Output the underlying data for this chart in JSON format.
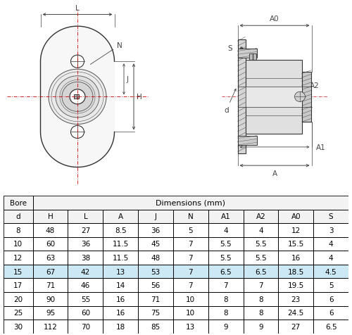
{
  "bore_header": "Bore",
  "dim_header": "Dimensions (mm)",
  "col_headers": [
    "d",
    "H",
    "L",
    "A",
    "J",
    "N",
    "A1",
    "A2",
    "A0",
    "S"
  ],
  "rows": [
    [
      "8",
      "48",
      "27",
      "8.5",
      "36",
      "5",
      "4",
      "4",
      "12",
      "3"
    ],
    [
      "10",
      "60",
      "36",
      "11.5",
      "45",
      "7",
      "5.5",
      "5.5",
      "15.5",
      "4"
    ],
    [
      "12",
      "63",
      "38",
      "11.5",
      "48",
      "7",
      "5.5",
      "5.5",
      "16",
      "4"
    ],
    [
      "15",
      "67",
      "42",
      "13",
      "53",
      "7",
      "6.5",
      "6.5",
      "18.5",
      "4.5"
    ],
    [
      "17",
      "71",
      "46",
      "14",
      "56",
      "7",
      "7",
      "7",
      "19.5",
      "5"
    ],
    [
      "20",
      "90",
      "55",
      "16",
      "71",
      "10",
      "8",
      "8",
      "23",
      "6"
    ],
    [
      "25",
      "95",
      "60",
      "16",
      "75",
      "10",
      "8",
      "8",
      "24.5",
      "6"
    ],
    [
      "30",
      "112",
      "70",
      "18",
      "85",
      "13",
      "9",
      "9",
      "27",
      "6.5"
    ]
  ],
  "highlight_row": 3,
  "bg_color": "#ffffff",
  "table_border_color": "#000000",
  "highlight_color": "#cce8f4",
  "text_color": "#000000"
}
